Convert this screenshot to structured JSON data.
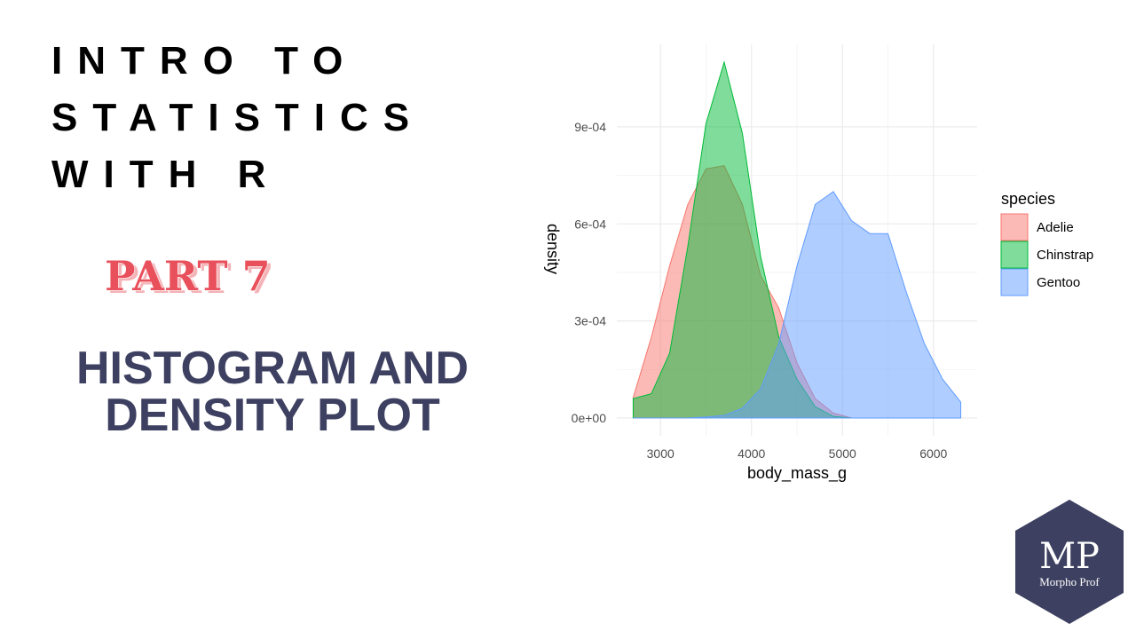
{
  "header": {
    "title_lines": [
      "INTRO TO",
      "STATISTICS",
      "WITH R"
    ],
    "part": "PART 7",
    "topic_lines": [
      "HISTOGRAM AND",
      "DENSITY PLOT"
    ]
  },
  "logo": {
    "initials": "MP",
    "name": "Morpho Prof"
  },
  "chart_data": {
    "type": "area",
    "x_label": "body_mass_g",
    "y_label": "density",
    "legend_title": "species",
    "x": [
      2700,
      2900,
      3100,
      3300,
      3500,
      3700,
      3900,
      4100,
      4300,
      4500,
      4700,
      4900,
      5100,
      5300,
      5500,
      5700,
      5900,
      6100,
      6300
    ],
    "series": [
      {
        "name": "Adelie",
        "color": "#f8766d",
        "values": [
          6.3e-05,
          0.00025,
          0.00047,
          0.00066,
          0.00077,
          0.00078,
          0.00066,
          0.00044,
          0.00034,
          0.00017,
          6e-05,
          1.5e-05,
          0,
          0,
          0,
          0,
          0,
          0,
          0
        ]
      },
      {
        "name": "Chinstrap",
        "color": "#00ba38",
        "values": [
          6e-05,
          7.5e-05,
          0.0002,
          0.00053,
          0.00091,
          0.0011,
          0.00088,
          0.0005,
          0.00025,
          0.00012,
          3.5e-05,
          5e-06,
          0,
          0,
          0,
          0,
          0,
          0,
          0
        ]
      },
      {
        "name": "Gentoo",
        "color": "#619cff",
        "values": [
          0,
          0,
          0,
          0,
          3e-06,
          8e-06,
          3e-05,
          9e-05,
          0.00023,
          0.00047,
          0.00066,
          0.0007,
          0.00061,
          0.00057,
          0.00057,
          0.00039,
          0.00023,
          0.00012,
          4.9e-05
        ]
      }
    ],
    "xlim": [
      2520,
      6480
    ],
    "xticks": [
      3000,
      4000,
      5000,
      6000
    ],
    "ylim": [
      -5.5e-05,
      0.001155
    ],
    "yticks": [
      {
        "value": 0,
        "label": "0e+00"
      },
      {
        "value": 0.0003,
        "label": "3e-04"
      },
      {
        "value": 0.0006,
        "label": "6e-04"
      },
      {
        "value": 0.0009,
        "label": "9e-04"
      }
    ],
    "grid": true,
    "fill_opacity": 0.5
  }
}
